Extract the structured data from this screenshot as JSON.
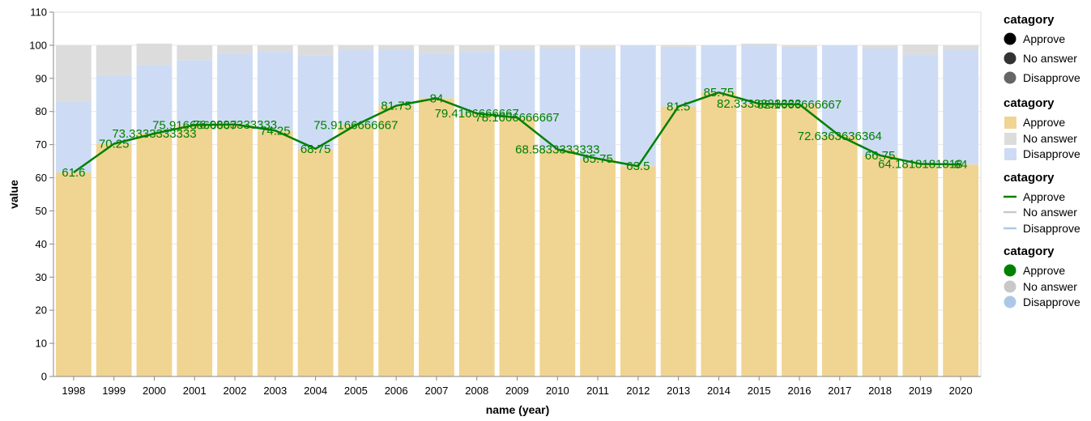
{
  "chart_data": {
    "type": "bar",
    "xlabel": "name (year)",
    "ylabel": "value",
    "ylim": [
      0,
      110
    ],
    "yticks": [
      0,
      10,
      20,
      30,
      40,
      50,
      60,
      70,
      80,
      90,
      100,
      110
    ],
    "grid": true,
    "legend_placement": "right",
    "categories": [
      "1998",
      "1999",
      "2000",
      "2001",
      "2002",
      "2003",
      "2004",
      "2005",
      "2006",
      "2007",
      "2008",
      "2009",
      "2010",
      "2011",
      "2012",
      "2013",
      "2014",
      "2015",
      "2016",
      "2017",
      "2018",
      "2019",
      "2020"
    ],
    "stacked_series": [
      {
        "name": "Approve",
        "color": "#f0d492",
        "values": [
          61.6,
          70.25,
          73.3333333333,
          75.9166666667,
          76.0833333333,
          74.25,
          68.75,
          75.9166666667,
          81.75,
          84,
          79.4166666667,
          78.1666666667,
          68.5833333333,
          65.75,
          63.5,
          81.5,
          85.75,
          82.3333333333,
          82.1666666667,
          72.6363636364,
          66.75,
          64.1818181818,
          64
        ]
      },
      {
        "name": "Disapprove",
        "color": "#cddcf4",
        "values": [
          21.4,
          20.75,
          20.67,
          19.58,
          21.42,
          23.75,
          28.25,
          22.58,
          17.0,
          13.5,
          18.58,
          20.33,
          30.42,
          33.25,
          36.5,
          18.0,
          14.25,
          17.67,
          17.33,
          27.36,
          32.25,
          33.0,
          34.5
        ]
      },
      {
        "name": "No answer",
        "color": "#dcdcdc",
        "values": [
          17.0,
          9.0,
          6.5,
          4.5,
          2.5,
          2.0,
          3.0,
          1.5,
          1.25,
          2.5,
          2.0,
          1.5,
          1.0,
          1.0,
          0,
          0.5,
          0,
          0.5,
          0.5,
          0,
          1.0,
          3.0,
          1.5
        ]
      }
    ],
    "line_series": {
      "name": "Approve",
      "color": "#008000"
    },
    "data_labels": [
      "61.6",
      "70.25",
      "73.3333333333",
      "75.9166666667",
      "76.0833333333",
      "74.25",
      "68.75",
      "75.9166666667",
      "81.75",
      "84",
      "79.4166666667",
      "78.1666666667",
      "68.5833333333",
      "65.75",
      "63.5",
      "81.5",
      "85.75",
      "82.3333333333",
      "82.1666666667",
      "72.6363636364",
      "66.75",
      "64.1818181818",
      "64"
    ],
    "legends": [
      {
        "title": "catagory",
        "kind": "point-dark",
        "items": [
          {
            "label": "Approve",
            "color": "#000000"
          },
          {
            "label": "No answer",
            "color": "#333333"
          },
          {
            "label": "Disapprove",
            "color": "#666666"
          }
        ]
      },
      {
        "title": "catagory",
        "kind": "square",
        "items": [
          {
            "label": "Approve",
            "color": "#f0d492"
          },
          {
            "label": "No answer",
            "color": "#dcdcdc"
          },
          {
            "label": "Disapprove",
            "color": "#cddcf4"
          }
        ]
      },
      {
        "title": "catagory",
        "kind": "line",
        "items": [
          {
            "label": "Approve",
            "color": "#008000"
          },
          {
            "label": "No answer",
            "color": "#c8c8c8"
          },
          {
            "label": "Disapprove",
            "color": "#aec7e8"
          }
        ]
      },
      {
        "title": "catagory",
        "kind": "point",
        "items": [
          {
            "label": "Approve",
            "color": "#008000"
          },
          {
            "label": "No answer",
            "color": "#c8c8c8"
          },
          {
            "label": "Disapprove",
            "color": "#aec7e8"
          }
        ]
      }
    ]
  }
}
